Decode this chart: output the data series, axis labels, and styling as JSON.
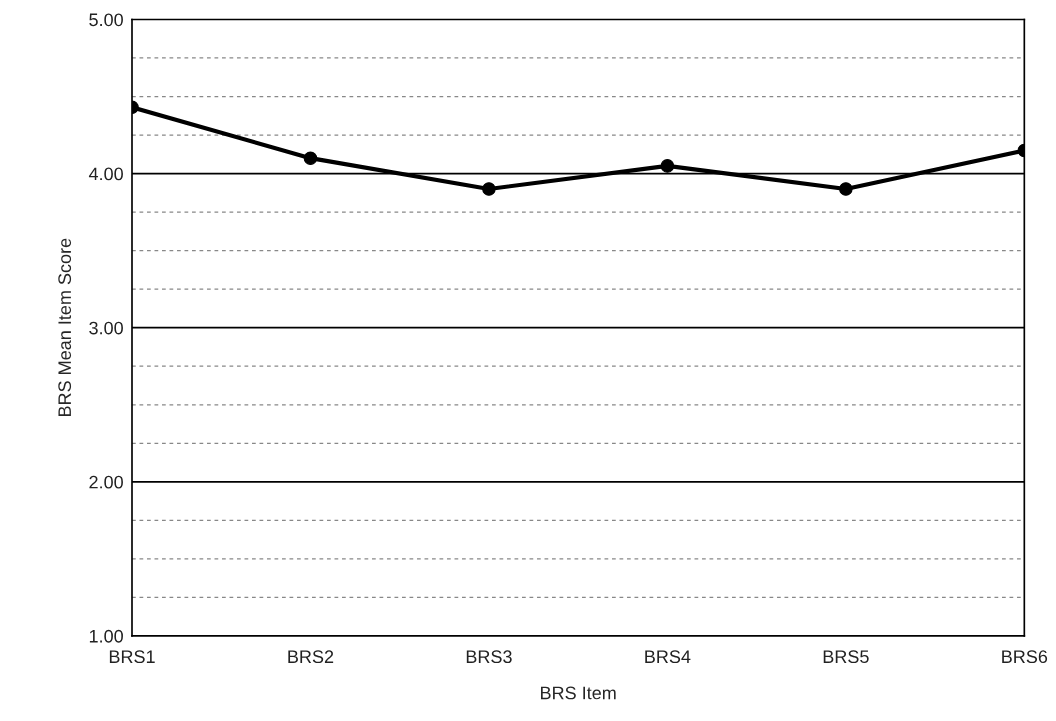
{
  "chart_data": {
    "type": "line",
    "xlabel": "BRS Item",
    "ylabel": "BRS Mean Item Score",
    "categories": [
      "BRS1",
      "BRS2",
      "BRS3",
      "BRS4",
      "BRS5",
      "BRS6"
    ],
    "series": [
      {
        "color": "#000000",
        "values": [
          4.43,
          4.1,
          3.9,
          4.05,
          3.9,
          4.15
        ]
      }
    ],
    "ylim": [
      1,
      5
    ],
    "yticks": [
      {
        "value": 1.0,
        "label": "1.00"
      },
      {
        "value": 1.25,
        "label": null
      },
      {
        "value": 1.5,
        "label": null
      },
      {
        "value": 1.75,
        "label": null
      },
      {
        "value": 2.0,
        "label": "2.00"
      },
      {
        "value": 2.25,
        "label": null
      },
      {
        "value": 2.5,
        "label": null
      },
      {
        "value": 2.75,
        "label": null
      },
      {
        "value": 3.0,
        "label": "3.00"
      },
      {
        "value": 3.25,
        "label": null
      },
      {
        "value": 3.5,
        "label": null
      },
      {
        "value": 3.75,
        "label": null
      },
      {
        "value": 4.0,
        "label": "4.00"
      },
      {
        "value": 4.25,
        "label": null
      },
      {
        "value": 4.5,
        "label": null
      },
      {
        "value": 4.75,
        "label": null
      },
      {
        "value": 5.0,
        "label": "5.00"
      }
    ],
    "grid": "y",
    "marker": "circle",
    "line_style": "solid",
    "legend": false
  }
}
